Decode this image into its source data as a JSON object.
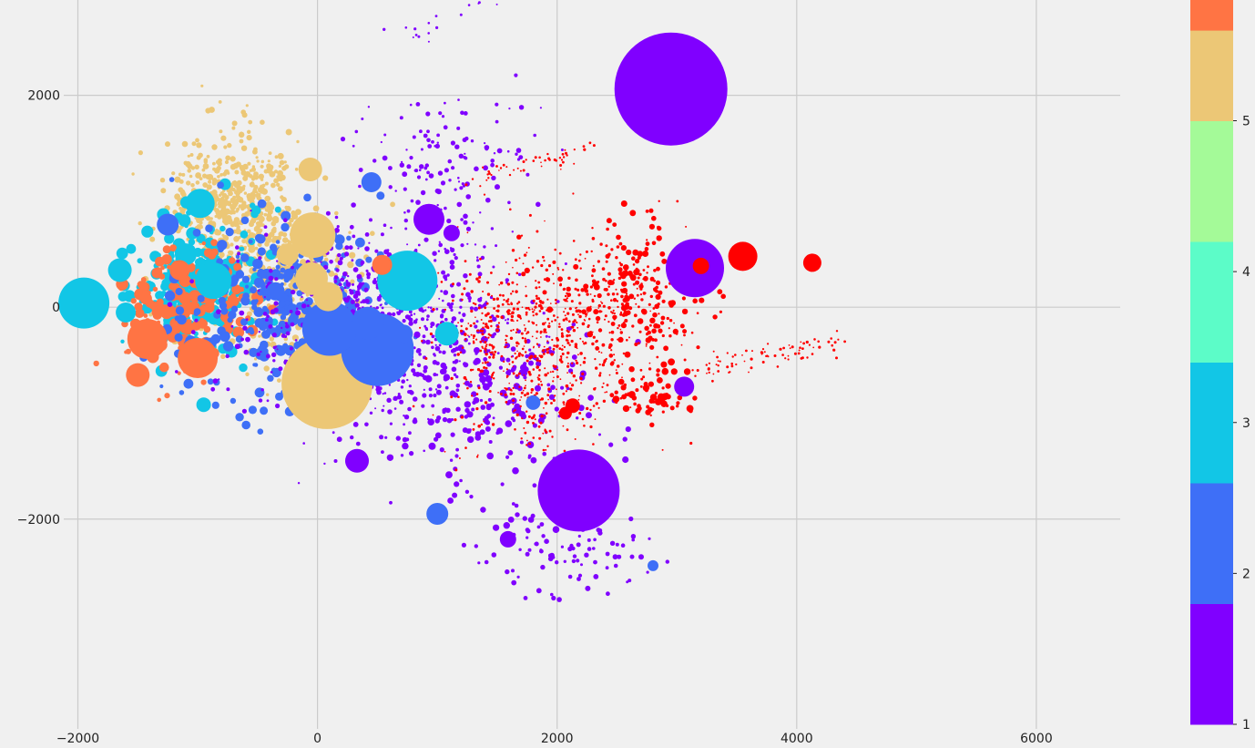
{
  "chart_data": {
    "type": "scatter",
    "title": "",
    "xlabel": "",
    "ylabel": "",
    "xlim": [
      -2650,
      6700
    ],
    "ylim": [
      -3980,
      2900
    ],
    "x_ticks": [
      -2000,
      0,
      2000,
      4000,
      6000
    ],
    "x_tick_labels": [
      "−2000",
      "0",
      "2000",
      "4000",
      "6000"
    ],
    "y_ticks": [
      -2000,
      0,
      2000
    ],
    "y_tick_labels": [
      "−2000",
      "0",
      "2000"
    ],
    "grid": true,
    "background": "#f0f0f0",
    "grid_color": "#cbcbcb",
    "colorbar": {
      "position": "right",
      "range": [
        1,
        5.6
      ],
      "ticks": [
        1,
        2,
        3,
        4,
        5
      ],
      "tick_labels": [
        "1",
        "2",
        "3",
        "4",
        "5"
      ],
      "bands": [
        {
          "from": 1.0,
          "to": 1.8,
          "color": "#8000ff"
        },
        {
          "from": 1.8,
          "to": 2.6,
          "color": "#3e6ff7"
        },
        {
          "from": 2.6,
          "to": 3.4,
          "color": "#12c6e6"
        },
        {
          "from": 3.4,
          "to": 4.2,
          "color": "#5cfcc8"
        },
        {
          "from": 4.2,
          "to": 5.0,
          "color": "#a4fa98"
        },
        {
          "from": 5.0,
          "to": 5.6,
          "color": "#ecc776"
        },
        {
          "from": 5.6,
          "to": 5.8,
          "color": "#ff7444"
        }
      ]
    },
    "category_colors": {
      "1": "#8000ff",
      "2": "#3e6ff7",
      "3": "#12c6e6",
      "5": "#ecc776",
      "6": "#ff7444",
      "7": "#ff0000"
    },
    "big_points": [
      {
        "x": 2950,
        "y": 2060,
        "r": 62,
        "c": 1
      },
      {
        "x": 2180,
        "y": -1730,
        "r": 45,
        "c": 1
      },
      {
        "x": 3150,
        "y": 370,
        "r": 32,
        "c": 1
      },
      {
        "x": 930,
        "y": 830,
        "r": 17,
        "c": 1
      },
      {
        "x": 3060,
        "y": -750,
        "r": 11,
        "c": 1
      },
      {
        "x": 330,
        "y": -1450,
        "r": 13,
        "c": 1
      },
      {
        "x": 1590,
        "y": -2190,
        "r": 9,
        "c": 1
      },
      {
        "x": 1120,
        "y": 700,
        "r": 9,
        "c": 1
      },
      {
        "x": 500,
        "y": -400,
        "r": 40,
        "c": 2
      },
      {
        "x": 100,
        "y": -200,
        "r": 30,
        "c": 2
      },
      {
        "x": 420,
        "y": -150,
        "r": 18,
        "c": 2
      },
      {
        "x": 1000,
        "y": -1950,
        "r": 12,
        "c": 2
      },
      {
        "x": 450,
        "y": 1180,
        "r": 11,
        "c": 2
      },
      {
        "x": -350,
        "y": 150,
        "r": 10,
        "c": 2
      },
      {
        "x": -1250,
        "y": 780,
        "r": 12,
        "c": 2
      },
      {
        "x": 720,
        "y": -250,
        "r": 10,
        "c": 2
      },
      {
        "x": 1800,
        "y": -900,
        "r": 8,
        "c": 2
      },
      {
        "x": 2800,
        "y": -2440,
        "r": 6,
        "c": 2
      },
      {
        "x": -1950,
        "y": 40,
        "r": 28,
        "c": 3
      },
      {
        "x": 750,
        "y": 250,
        "r": 33,
        "c": 3
      },
      {
        "x": -870,
        "y": 250,
        "r": 20,
        "c": 3
      },
      {
        "x": -980,
        "y": 980,
        "r": 16,
        "c": 3
      },
      {
        "x": -1650,
        "y": 350,
        "r": 13,
        "c": 3
      },
      {
        "x": -1100,
        "y": 500,
        "r": 12,
        "c": 3
      },
      {
        "x": 1080,
        "y": -250,
        "r": 13,
        "c": 3
      },
      {
        "x": -950,
        "y": -920,
        "r": 8,
        "c": 3
      },
      {
        "x": -1600,
        "y": -50,
        "r": 11,
        "c": 3
      },
      {
        "x": 80,
        "y": -720,
        "r": 50,
        "c": 5
      },
      {
        "x": -40,
        "y": 680,
        "r": 25,
        "c": 5
      },
      {
        "x": -50,
        "y": 270,
        "r": 18,
        "c": 5
      },
      {
        "x": 90,
        "y": 100,
        "r": 16,
        "c": 5
      },
      {
        "x": -250,
        "y": 500,
        "r": 12,
        "c": 5
      },
      {
        "x": -60,
        "y": 1300,
        "r": 13,
        "c": 5
      },
      {
        "x": -1420,
        "y": -300,
        "r": 22,
        "c": 6
      },
      {
        "x": -1000,
        "y": -480,
        "r": 22,
        "c": 6
      },
      {
        "x": -1500,
        "y": -640,
        "r": 13,
        "c": 6
      },
      {
        "x": 540,
        "y": 400,
        "r": 11,
        "c": 6
      },
      {
        "x": -1150,
        "y": 350,
        "r": 11,
        "c": 6
      },
      {
        "x": 3550,
        "y": 480,
        "r": 16,
        "c": 7
      },
      {
        "x": 4130,
        "y": 420,
        "r": 10,
        "c": 7
      },
      {
        "x": 3200,
        "y": 390,
        "r": 9,
        "c": 7
      },
      {
        "x": 2130,
        "y": -930,
        "r": 8,
        "c": 7
      },
      {
        "x": 2070,
        "y": -1000,
        "r": 7,
        "c": 7
      }
    ],
    "clusters": [
      {
        "cx": -700,
        "cy": 1000,
        "sx": 450,
        "sy": 520,
        "n": 500,
        "c": 5,
        "rmin": 1.5,
        "rmax": 3.5
      },
      {
        "cx": -350,
        "cy": 200,
        "sx": 650,
        "sy": 650,
        "n": 420,
        "c": 5,
        "rmin": 1.5,
        "rmax": 4
      },
      {
        "cx": -1000,
        "cy": 200,
        "sx": 450,
        "sy": 500,
        "n": 260,
        "c": 3,
        "rmin": 2,
        "rmax": 7
      },
      {
        "cx": -1100,
        "cy": 0,
        "sx": 420,
        "sy": 480,
        "n": 190,
        "c": 6,
        "rmin": 2,
        "rmax": 7
      },
      {
        "cx": -300,
        "cy": 0,
        "sx": 750,
        "sy": 700,
        "n": 320,
        "c": 2,
        "rmin": 2,
        "rmax": 6
      },
      {
        "cx": 500,
        "cy": -200,
        "sx": 900,
        "sy": 800,
        "n": 800,
        "c": 1,
        "rmin": 1,
        "rmax": 3
      },
      {
        "cx": 1500,
        "cy": -900,
        "sx": 700,
        "sy": 800,
        "n": 220,
        "c": 1,
        "rmin": 1.5,
        "rmax": 4
      },
      {
        "cx": 1100,
        "cy": 1400,
        "sx": 600,
        "sy": 600,
        "n": 120,
        "c": 1,
        "rmin": 1,
        "rmax": 3
      },
      {
        "cx": 2100,
        "cy": -2300,
        "sx": 600,
        "sy": 380,
        "n": 90,
        "c": 1,
        "rmin": 1.5,
        "rmax": 3
      },
      {
        "cx": 1900,
        "cy": -300,
        "sx": 700,
        "sy": 700,
        "n": 700,
        "c": 7,
        "rmin": 0.8,
        "rmax": 1.8
      },
      {
        "cx": 2600,
        "cy": 200,
        "sx": 550,
        "sy": 550,
        "n": 240,
        "c": 7,
        "rmin": 1,
        "rmax": 3.5
      },
      {
        "cx": 2800,
        "cy": -800,
        "sx": 350,
        "sy": 250,
        "n": 60,
        "c": 7,
        "rmin": 1.5,
        "rmax": 4
      }
    ],
    "trails": [
      {
        "from": [
          1300,
          1200
        ],
        "to": [
          2300,
          1500
        ],
        "n": 50,
        "c": 7
      },
      {
        "from": [
          3200,
          -600
        ],
        "to": [
          4400,
          -300
        ],
        "n": 80,
        "c": 7
      },
      {
        "from": [
          1300,
          -100
        ],
        "to": [
          1900,
          -1400
        ],
        "n": 60,
        "c": 7
      },
      {
        "from": [
          800,
          2500
        ],
        "to": [
          2000,
          3300
        ],
        "n": 30,
        "c": 1
      }
    ]
  }
}
